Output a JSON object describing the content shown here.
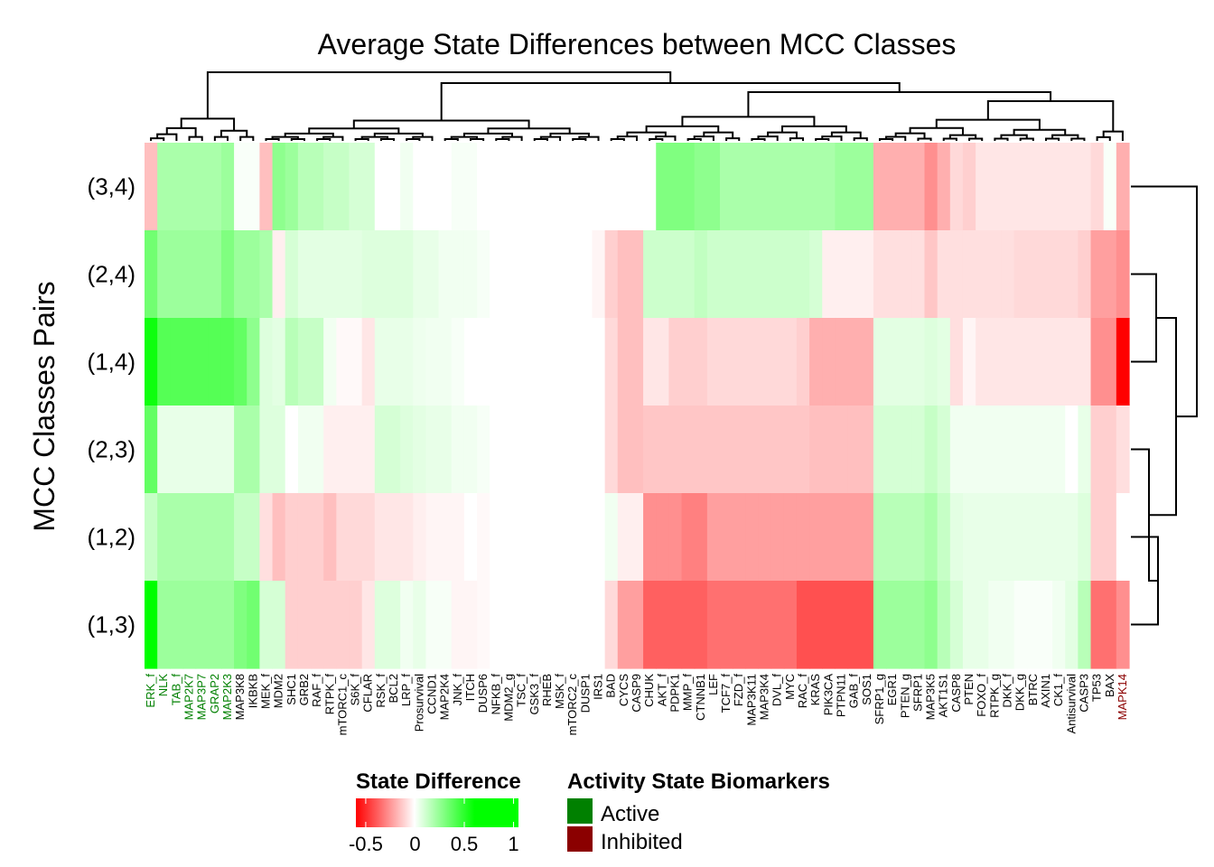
{
  "chart_data": {
    "type": "heatmap",
    "title": "Average State Differences between MCC Classes",
    "ylabel": "MCC Classes Pairs",
    "rows": [
      "(3,4)",
      "(2,4)",
      "(1,4)",
      "(2,3)",
      "(1,2)",
      "(1,3)"
    ],
    "columns": [
      {
        "name": "ERK_f",
        "state": "active"
      },
      {
        "name": "NLK",
        "state": "active"
      },
      {
        "name": "TAB_f",
        "state": "active"
      },
      {
        "name": "MAP2K7",
        "state": "active"
      },
      {
        "name": "MAP3P7",
        "state": "active"
      },
      {
        "name": "GRAP2",
        "state": "active"
      },
      {
        "name": "MAP2K3",
        "state": "active"
      },
      {
        "name": "MAP3K8",
        "state": "none"
      },
      {
        "name": "IKBKB",
        "state": "none"
      },
      {
        "name": "MEK_f",
        "state": "none"
      },
      {
        "name": "MDM2",
        "state": "none"
      },
      {
        "name": "SHC1",
        "state": "none"
      },
      {
        "name": "GRB2",
        "state": "none"
      },
      {
        "name": "RAF_f",
        "state": "none"
      },
      {
        "name": "RTPK_f",
        "state": "none"
      },
      {
        "name": "mTORC1_c",
        "state": "none"
      },
      {
        "name": "S6K_f",
        "state": "none"
      },
      {
        "name": "CFLAR",
        "state": "none"
      },
      {
        "name": "RSK_f",
        "state": "none"
      },
      {
        "name": "BCL2",
        "state": "none"
      },
      {
        "name": "LRP_f",
        "state": "none"
      },
      {
        "name": "Prosurvival",
        "state": "none"
      },
      {
        "name": "CCND1",
        "state": "none"
      },
      {
        "name": "MAP2K4",
        "state": "none"
      },
      {
        "name": "JNK_f",
        "state": "none"
      },
      {
        "name": "ITCH",
        "state": "none"
      },
      {
        "name": "DUSP6",
        "state": "none"
      },
      {
        "name": "NFKB_f",
        "state": "none"
      },
      {
        "name": "MDM2_g",
        "state": "none"
      },
      {
        "name": "TSC_f",
        "state": "none"
      },
      {
        "name": "GSK3_f",
        "state": "none"
      },
      {
        "name": "RHEB",
        "state": "none"
      },
      {
        "name": "MSK_f",
        "state": "none"
      },
      {
        "name": "mTORC2_c",
        "state": "none"
      },
      {
        "name": "DUSP1",
        "state": "none"
      },
      {
        "name": "IRS1",
        "state": "none"
      },
      {
        "name": "BAD",
        "state": "none"
      },
      {
        "name": "CYCS",
        "state": "none"
      },
      {
        "name": "CASP9",
        "state": "none"
      },
      {
        "name": "CHUK",
        "state": "none"
      },
      {
        "name": "AKT_f",
        "state": "none"
      },
      {
        "name": "PDPK1",
        "state": "none"
      },
      {
        "name": "MMP_f",
        "state": "none"
      },
      {
        "name": "CTNNB1",
        "state": "none"
      },
      {
        "name": "LEF",
        "state": "none"
      },
      {
        "name": "TCF7_f",
        "state": "none"
      },
      {
        "name": "FZD_f",
        "state": "none"
      },
      {
        "name": "MAP3K11",
        "state": "none"
      },
      {
        "name": "MAP3K4",
        "state": "none"
      },
      {
        "name": "DVL_f",
        "state": "none"
      },
      {
        "name": "MYC",
        "state": "none"
      },
      {
        "name": "RAC_f",
        "state": "none"
      },
      {
        "name": "KRAS",
        "state": "none"
      },
      {
        "name": "PIK3CA",
        "state": "none"
      },
      {
        "name": "PTPN11",
        "state": "none"
      },
      {
        "name": "GAB_f",
        "state": "none"
      },
      {
        "name": "SOS1",
        "state": "none"
      },
      {
        "name": "SFRP1_g",
        "state": "none"
      },
      {
        "name": "EGR1",
        "state": "none"
      },
      {
        "name": "PTEN_g",
        "state": "none"
      },
      {
        "name": "SFRP1",
        "state": "none"
      },
      {
        "name": "MAP3K5",
        "state": "none"
      },
      {
        "name": "AKT1S1",
        "state": "none"
      },
      {
        "name": "CASP8",
        "state": "none"
      },
      {
        "name": "PTEN",
        "state": "none"
      },
      {
        "name": "FOXO_f",
        "state": "none"
      },
      {
        "name": "RTPK_g",
        "state": "none"
      },
      {
        "name": "DKK_f",
        "state": "none"
      },
      {
        "name": "DKK_g",
        "state": "none"
      },
      {
        "name": "BTRC",
        "state": "none"
      },
      {
        "name": "AXIN1",
        "state": "none"
      },
      {
        "name": "CK1_f",
        "state": "none"
      },
      {
        "name": "Antisurvival",
        "state": "none"
      },
      {
        "name": "CASP3",
        "state": "none"
      },
      {
        "name": "TP53",
        "state": "none"
      },
      {
        "name": "BAX",
        "state": "none"
      },
      {
        "name": "MAPK14",
        "state": "inhibited"
      }
    ],
    "values": [
      [
        -0.2,
        0.3,
        0.3,
        0.3,
        0.3,
        0.3,
        0.35,
        0.02,
        0.02,
        -0.2,
        0.4,
        0.35,
        0.25,
        0.25,
        0.2,
        0.2,
        0.15,
        0.15,
        0.0,
        0.0,
        0.05,
        0.0,
        0.0,
        0.0,
        0.03,
        0.03,
        0.0,
        0.0,
        0.0,
        0.0,
        0.0,
        0.0,
        0.0,
        0.0,
        0.0,
        0.0,
        0.0,
        0.0,
        0.0,
        0.0,
        0.45,
        0.45,
        0.45,
        0.4,
        0.4,
        0.3,
        0.3,
        0.3,
        0.3,
        0.3,
        0.3,
        0.3,
        0.3,
        0.3,
        0.35,
        0.35,
        0.35,
        -0.25,
        -0.25,
        -0.25,
        -0.25,
        -0.35,
        -0.25,
        -0.12,
        -0.15,
        -0.08,
        -0.08,
        -0.08,
        -0.08,
        -0.08,
        -0.08,
        -0.08,
        -0.08,
        -0.08,
        -0.12,
        0.02,
        -0.25
      ],
      [
        0.5,
        0.35,
        0.35,
        0.35,
        0.35,
        0.35,
        0.45,
        0.35,
        0.35,
        0.3,
        -0.05,
        0.15,
        0.1,
        0.1,
        0.1,
        0.1,
        0.1,
        0.12,
        0.12,
        0.12,
        0.12,
        0.08,
        0.08,
        0.05,
        0.05,
        0.05,
        0.03,
        0.0,
        0.0,
        0.0,
        0.0,
        0.0,
        0.0,
        0.0,
        0.0,
        -0.03,
        -0.15,
        -0.2,
        -0.2,
        0.18,
        0.18,
        0.18,
        0.18,
        0.22,
        0.18,
        0.18,
        0.18,
        0.18,
        0.18,
        0.18,
        0.18,
        0.18,
        0.15,
        -0.05,
        -0.05,
        -0.05,
        -0.05,
        -0.1,
        -0.1,
        -0.1,
        -0.1,
        -0.18,
        -0.1,
        -0.1,
        -0.1,
        -0.1,
        -0.1,
        -0.1,
        -0.12,
        -0.12,
        -0.12,
        -0.12,
        -0.12,
        -0.15,
        -0.3,
        -0.3,
        -0.35
      ],
      [
        0.85,
        0.6,
        0.6,
        0.6,
        0.6,
        0.6,
        0.6,
        0.55,
        0.4,
        0.12,
        0.1,
        0.25,
        0.2,
        0.2,
        0.05,
        -0.02,
        -0.02,
        -0.08,
        0.08,
        0.08,
        0.08,
        0.06,
        0.05,
        0.05,
        0.03,
        0.0,
        0.0,
        0.0,
        0.0,
        0.0,
        0.0,
        0.0,
        0.0,
        0.0,
        0.0,
        0.0,
        -0.12,
        -0.2,
        -0.2,
        -0.08,
        -0.08,
        -0.15,
        -0.15,
        -0.15,
        -0.12,
        -0.12,
        -0.12,
        -0.12,
        -0.12,
        -0.12,
        -0.12,
        -0.15,
        -0.25,
        -0.25,
        -0.25,
        -0.25,
        -0.25,
        0.1,
        0.1,
        0.1,
        0.1,
        0.12,
        0.1,
        -0.1,
        -0.03,
        -0.08,
        -0.08,
        -0.08,
        -0.08,
        -0.08,
        -0.08,
        -0.08,
        -0.08,
        -0.08,
        -0.35,
        -0.35,
        -0.8
      ],
      [
        0.55,
        0.08,
        0.08,
        0.08,
        0.08,
        0.08,
        0.08,
        0.3,
        0.3,
        0.12,
        0.12,
        0.0,
        0.05,
        0.05,
        -0.05,
        -0.05,
        -0.05,
        -0.05,
        0.15,
        0.15,
        0.12,
        0.1,
        0.08,
        0.08,
        0.05,
        0.05,
        0.03,
        0.0,
        0.0,
        0.0,
        0.0,
        0.0,
        0.0,
        0.0,
        0.0,
        0.0,
        -0.12,
        -0.2,
        -0.2,
        -0.18,
        -0.18,
        -0.18,
        -0.18,
        -0.18,
        -0.18,
        -0.18,
        -0.18,
        -0.18,
        -0.18,
        -0.18,
        -0.18,
        -0.18,
        -0.2,
        -0.2,
        -0.2,
        -0.2,
        -0.2,
        0.15,
        0.15,
        0.15,
        0.15,
        0.2,
        0.15,
        0.05,
        0.05,
        0.05,
        0.05,
        0.05,
        0.05,
        0.05,
        0.05,
        0.05,
        0.0,
        0.08,
        -0.15,
        -0.15,
        -0.1
      ],
      [
        0.2,
        0.3,
        0.3,
        0.3,
        0.3,
        0.3,
        0.3,
        0.2,
        0.2,
        -0.1,
        -0.2,
        -0.15,
        -0.15,
        -0.15,
        -0.2,
        -0.12,
        -0.12,
        -0.12,
        -0.08,
        -0.08,
        -0.08,
        -0.05,
        -0.03,
        -0.03,
        -0.03,
        0.0,
        -0.02,
        0.0,
        0.0,
        0.0,
        0.0,
        0.0,
        0.0,
        0.0,
        0.0,
        0.0,
        0.05,
        -0.05,
        -0.05,
        -0.35,
        -0.35,
        -0.35,
        -0.4,
        -0.4,
        -0.3,
        -0.3,
        -0.3,
        -0.3,
        -0.3,
        -0.3,
        -0.3,
        -0.3,
        -0.3,
        -0.3,
        -0.3,
        -0.3,
        -0.3,
        0.25,
        0.25,
        0.25,
        0.25,
        0.3,
        0.2,
        0.1,
        0.08,
        0.08,
        0.08,
        0.08,
        0.08,
        0.08,
        0.08,
        0.08,
        0.08,
        0.12,
        -0.15,
        -0.15,
        0.0
      ],
      [
        0.9,
        0.35,
        0.35,
        0.35,
        0.35,
        0.35,
        0.35,
        0.45,
        0.5,
        0.15,
        0.15,
        -0.15,
        -0.15,
        -0.15,
        -0.15,
        -0.15,
        -0.15,
        -0.08,
        0.12,
        0.12,
        0.05,
        0.08,
        0.03,
        0.03,
        -0.03,
        -0.03,
        -0.02,
        0.0,
        0.0,
        0.0,
        0.0,
        0.0,
        0.0,
        0.0,
        0.0,
        0.0,
        -0.12,
        -0.3,
        -0.3,
        -0.5,
        -0.5,
        -0.5,
        -0.5,
        -0.5,
        -0.45,
        -0.45,
        -0.45,
        -0.45,
        -0.45,
        -0.45,
        -0.45,
        -0.55,
        -0.55,
        -0.55,
        -0.55,
        -0.55,
        -0.55,
        0.35,
        0.35,
        0.35,
        0.35,
        0.4,
        0.25,
        0.15,
        0.08,
        0.08,
        0.05,
        0.05,
        0.02,
        0.02,
        0.02,
        0.05,
        0.1,
        0.25,
        -0.45,
        -0.45,
        -0.35
      ]
    ],
    "colorbar": {
      "title": "State Difference",
      "ticks": [
        "-0.5",
        "0",
        "0.5",
        "1"
      ],
      "tick_values": [
        -0.5,
        0,
        0.5,
        1
      ],
      "range": [
        -0.6,
        1.05
      ],
      "low_color": "#ff0000",
      "mid_color": "#ffffff",
      "high_color": "#00ff00"
    },
    "legend": {
      "title": "Activity State Biomarkers",
      "items": [
        {
          "label": "Active",
          "color": "#008000"
        },
        {
          "label": "Inhibited",
          "color": "#8b0000"
        }
      ]
    }
  }
}
